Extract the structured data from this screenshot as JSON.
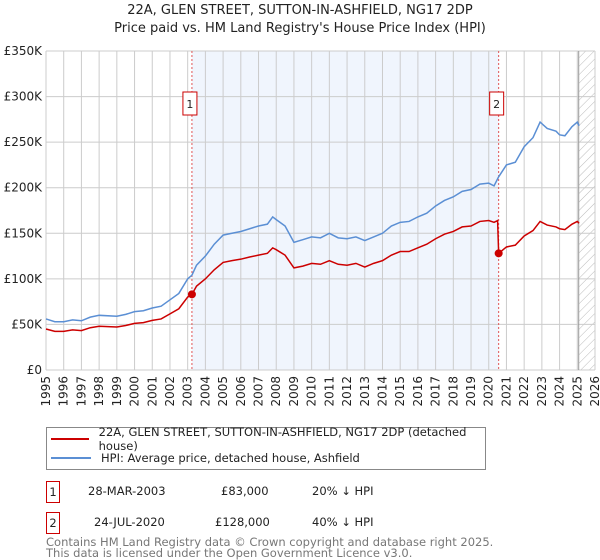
{
  "chart_data": {
    "type": "line",
    "title": "22A, GLEN STREET, SUTTON-IN-ASHFIELD, NG17 2DP",
    "subtitle": "Price paid vs. HM Land Registry's House Price Index (HPI)",
    "xlim": [
      1995,
      2026
    ],
    "ylim": [
      0,
      350000
    ],
    "x_ticks": [
      "1995",
      "1996",
      "1997",
      "1998",
      "1999",
      "2000",
      "2001",
      "2002",
      "2003",
      "2004",
      "2005",
      "2006",
      "2007",
      "2008",
      "2009",
      "2010",
      "2011",
      "2012",
      "2013",
      "2014",
      "2015",
      "2016",
      "2017",
      "2018",
      "2019",
      "2020",
      "2021",
      "2022",
      "2023",
      "2024",
      "2025",
      "2026"
    ],
    "y_ticks": [
      {
        "v": 0,
        "label": "£0"
      },
      {
        "v": 50000,
        "label": "£50K"
      },
      {
        "v": 100000,
        "label": "£100K"
      },
      {
        "v": 150000,
        "label": "£150K"
      },
      {
        "v": 200000,
        "label": "£200K"
      },
      {
        "v": 250000,
        "label": "£250K"
      },
      {
        "v": 300000,
        "label": "£300K"
      },
      {
        "v": 350000,
        "label": "£350K"
      }
    ],
    "grid": true,
    "shaded_range": [
      2003.24,
      2020.56
    ],
    "forecast_hatch_from": 2025.08,
    "series": [
      {
        "name": "22A, GLEN STREET, SUTTON-IN-ASHFIELD, NG17 2DP (detached house)",
        "color": "#cc0000",
        "x": [
          1995,
          1995.5,
          1996,
          1996.5,
          1997,
          1997.5,
          1998,
          1999,
          1999.5,
          2000,
          2000.5,
          2001,
          2001.5,
          2002,
          2002.5,
          2003,
          2003.24,
          2003.5,
          2004,
          2004.5,
          2005,
          2005.5,
          2006,
          2006.5,
          2007,
          2007.5,
          2007.8,
          2008,
          2008.5,
          2009,
          2009.5,
          2010,
          2010.5,
          2011,
          2011.5,
          2012,
          2012.5,
          2013,
          2013.5,
          2014,
          2014.5,
          2015,
          2015.5,
          2016,
          2016.5,
          2017,
          2017.5,
          2018,
          2018.5,
          2019,
          2019.5,
          2020,
          2020.3,
          2020.5,
          2020.56,
          2021,
          2021.5,
          2022,
          2022.5,
          2022.9,
          2023.3,
          2023.8,
          2024,
          2024.3,
          2024.7,
          2025,
          2025.1
        ],
        "y": [
          45,
          42.4,
          42.4,
          44,
          43.2,
          46.4,
          48,
          47.2,
          48.8,
          51.2,
          52,
          54.4,
          56,
          61.6,
          67.2,
          80,
          83,
          92,
          100,
          110,
          118,
          120,
          121.6,
          124,
          126,
          128,
          134,
          132,
          126,
          112,
          114,
          117,
          116,
          120,
          116,
          115,
          117,
          113,
          117,
          120,
          126,
          130,
          130,
          134,
          138,
          144,
          149,
          152,
          157,
          158,
          163,
          164,
          162,
          164,
          128,
          135,
          137,
          147,
          153,
          163,
          159,
          157,
          155,
          154,
          160,
          163,
          161
        ]
      },
      {
        "name": "HPI: Average price, detached house, Ashfield",
        "color": "#5b8fd4",
        "x": [
          1995,
          1995.5,
          1996,
          1996.5,
          1997,
          1997.5,
          1998,
          1999,
          1999.5,
          2000,
          2000.5,
          2001,
          2001.5,
          2002,
          2002.5,
          2003,
          2003.24,
          2003.5,
          2004,
          2004.5,
          2005,
          2005.5,
          2006,
          2006.5,
          2007,
          2007.5,
          2007.8,
          2008,
          2008.5,
          2009,
          2009.5,
          2010,
          2010.5,
          2011,
          2011.5,
          2012,
          2012.5,
          2013,
          2013.5,
          2014,
          2014.5,
          2015,
          2015.5,
          2016,
          2016.5,
          2017,
          2017.5,
          2018,
          2018.5,
          2019,
          2019.5,
          2020,
          2020.3,
          2020.56,
          2021,
          2021.5,
          2022,
          2022.5,
          2022.9,
          2023.3,
          2023.8,
          2024,
          2024.3,
          2024.7,
          2025,
          2025.1
        ],
        "y": [
          56,
          53,
          53,
          55,
          54,
          58,
          60,
          59,
          61,
          64,
          65,
          68,
          70,
          77,
          84,
          100,
          104,
          115,
          125,
          138,
          148,
          150,
          152,
          155,
          158,
          160,
          168,
          165,
          158,
          140,
          143,
          146,
          145,
          150,
          145,
          144,
          146,
          142,
          146,
          150,
          158,
          162,
          163,
          168,
          172,
          180,
          186,
          190,
          196,
          198,
          204,
          205,
          202,
          212,
          225,
          228,
          245,
          255,
          272,
          265,
          262,
          258,
          257,
          267,
          272,
          268
        ]
      }
    ],
    "sales": [
      {
        "id": "1",
        "x": 2003.24,
        "y": 83
      },
      {
        "id": "2",
        "x": 2020.56,
        "y": 128
      }
    ],
    "y_units": "thousand GBP"
  },
  "legend": {
    "red_label": "22A, GLEN STREET, SUTTON-IN-ASHFIELD, NG17 2DP (detached house)",
    "blue_label": "HPI: Average price, detached house, Ashfield"
  },
  "transactions": [
    {
      "id": "1",
      "date": "28-MAR-2003",
      "price": "£83,000",
      "hpi": "20% ↓ HPI"
    },
    {
      "id": "2",
      "date": "24-JUL-2020",
      "price": "£128,000",
      "hpi": "40% ↓ HPI"
    }
  ],
  "footer": {
    "line1": "Contains HM Land Registry data © Crown copyright and database right 2025.",
    "line2": "This data is licensed under the Open Government Licence v3.0."
  }
}
